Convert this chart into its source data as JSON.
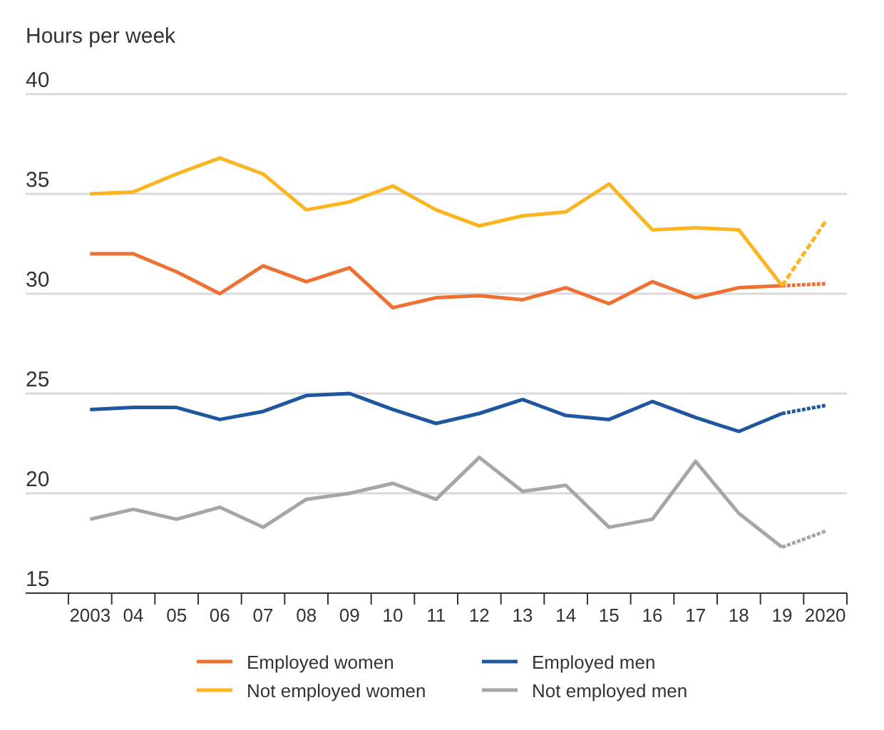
{
  "chart_data": {
    "type": "line",
    "ylabel": "Hours per week",
    "categories": [
      "2003",
      "04",
      "05",
      "06",
      "07",
      "08",
      "09",
      "10",
      "11",
      "12",
      "13",
      "14",
      "15",
      "16",
      "17",
      "18",
      "19",
      "2020"
    ],
    "series": [
      {
        "name": "Employed women",
        "color": "#ee7033",
        "values": [
          32.0,
          32.0,
          31.1,
          30.0,
          31.4,
          30.6,
          31.3,
          29.3,
          29.8,
          29.9,
          29.7,
          30.3,
          29.5,
          30.6,
          29.8,
          30.3,
          30.4,
          null
        ]
      },
      {
        "name": "Employed men",
        "color": "#1e56a0",
        "values": [
          24.2,
          24.3,
          24.3,
          23.7,
          24.1,
          24.9,
          25.0,
          24.2,
          23.5,
          24.0,
          24.7,
          23.9,
          23.7,
          24.6,
          23.8,
          23.1,
          24.0,
          null
        ]
      },
      {
        "name": "Not employed women",
        "color": "#fbb521",
        "values": [
          35.0,
          35.1,
          36.0,
          36.8,
          36.0,
          34.2,
          34.6,
          35.4,
          34.2,
          33.4,
          33.9,
          34.1,
          35.5,
          33.2,
          33.3,
          33.2,
          30.4,
          null
        ]
      },
      {
        "name": "Not employed men",
        "color": "#a6a6a6",
        "values": [
          18.7,
          19.2,
          18.7,
          19.3,
          18.3,
          19.7,
          20.0,
          20.5,
          19.7,
          21.8,
          20.1,
          20.4,
          18.3,
          18.7,
          21.6,
          19.0,
          17.3,
          null
        ]
      },
      {
        "color": "#ee7033",
        "line_style": "dashed",
        "values": [
          null,
          null,
          null,
          null,
          null,
          null,
          null,
          null,
          null,
          null,
          null,
          null,
          null,
          null,
          null,
          null,
          30.4,
          30.5
        ]
      },
      {
        "color": "#1e56a0",
        "line_style": "dashed",
        "values": [
          null,
          null,
          null,
          null,
          null,
          null,
          null,
          null,
          null,
          null,
          null,
          null,
          null,
          null,
          null,
          null,
          24.0,
          24.4
        ]
      },
      {
        "color": "#fbb521",
        "line_style": "dashed",
        "values": [
          null,
          null,
          null,
          null,
          null,
          null,
          null,
          null,
          null,
          null,
          null,
          null,
          null,
          null,
          null,
          null,
          30.4,
          33.6
        ]
      },
      {
        "color": "#a6a6a6",
        "line_style": "dashed",
        "values": [
          null,
          null,
          null,
          null,
          null,
          null,
          null,
          null,
          null,
          null,
          null,
          null,
          null,
          null,
          null,
          null,
          17.3,
          18.1
        ]
      }
    ],
    "ylim": [
      15,
      40
    ],
    "yticks": [
      15,
      20,
      25,
      30,
      35,
      40
    ],
    "grid": "y",
    "legend": "bottom"
  }
}
